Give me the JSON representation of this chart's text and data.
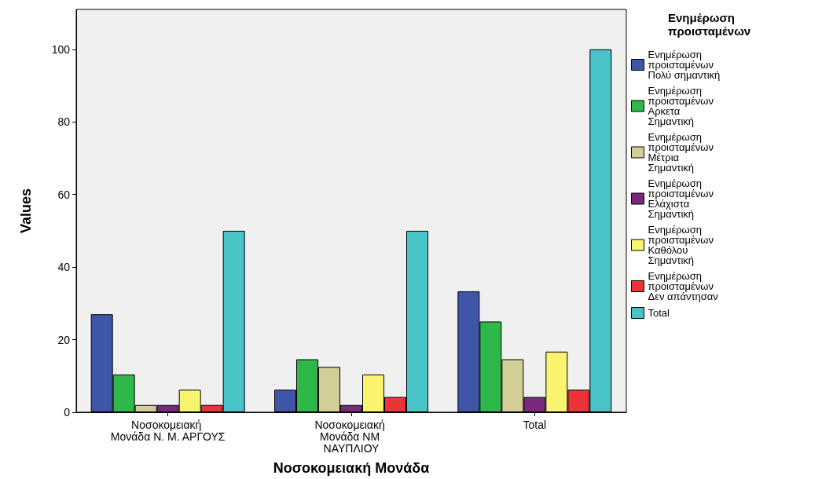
{
  "chart_data": {
    "type": "bar",
    "xlabel": "Νοσοκομειακή Μονάδα",
    "ylabel": "Values",
    "legend_title": "Ενημέρωση προισταμένων",
    "categories": [
      "Νοσοκομειακή Μονάδα Ν. Μ. ΑΡΓΟΥΣ",
      "Νοσοκομειακή Μονάδα ΝΜ ΝΑΥΠΛΙΟΥ",
      "Total"
    ],
    "series": [
      {
        "name": "Ενημέρωση προισταμένων Πολύ σημαντική",
        "color": "#3f56a8",
        "values": [
          27,
          6.2,
          33.3
        ]
      },
      {
        "name": "Ενημέρωση προισταμένων Αρκετα Σημαντική",
        "color": "#2fb84a",
        "values": [
          10.4,
          14.6,
          25
        ]
      },
      {
        "name": "Ενημέρωση προισταμένων Μέτρια Σημαντική",
        "color": "#d3ce97",
        "values": [
          2,
          12.5,
          14.6
        ]
      },
      {
        "name": "Ενημέρωση προισταμένων Ελάχιστα Σημαντική",
        "color": "#7a2a7e",
        "values": [
          2,
          2,
          4.2
        ]
      },
      {
        "name": "Ενημέρωση προισταμένων Καθόλου Σημαντική",
        "color": "#f8f46f",
        "values": [
          6.2,
          10.4,
          16.7
        ]
      },
      {
        "name": "Ενημέρωση προισταμένων Δεν απάντησαν",
        "color": "#ec3338",
        "values": [
          2,
          4.2,
          6.2
        ]
      },
      {
        "name": "Total",
        "color": "#48c3c7",
        "values": [
          50,
          50,
          100
        ]
      }
    ],
    "ylim": [
      0,
      111
    ],
    "yticks": [
      0,
      20,
      40,
      60,
      80,
      100
    ],
    "grid": false,
    "legend": "right"
  }
}
